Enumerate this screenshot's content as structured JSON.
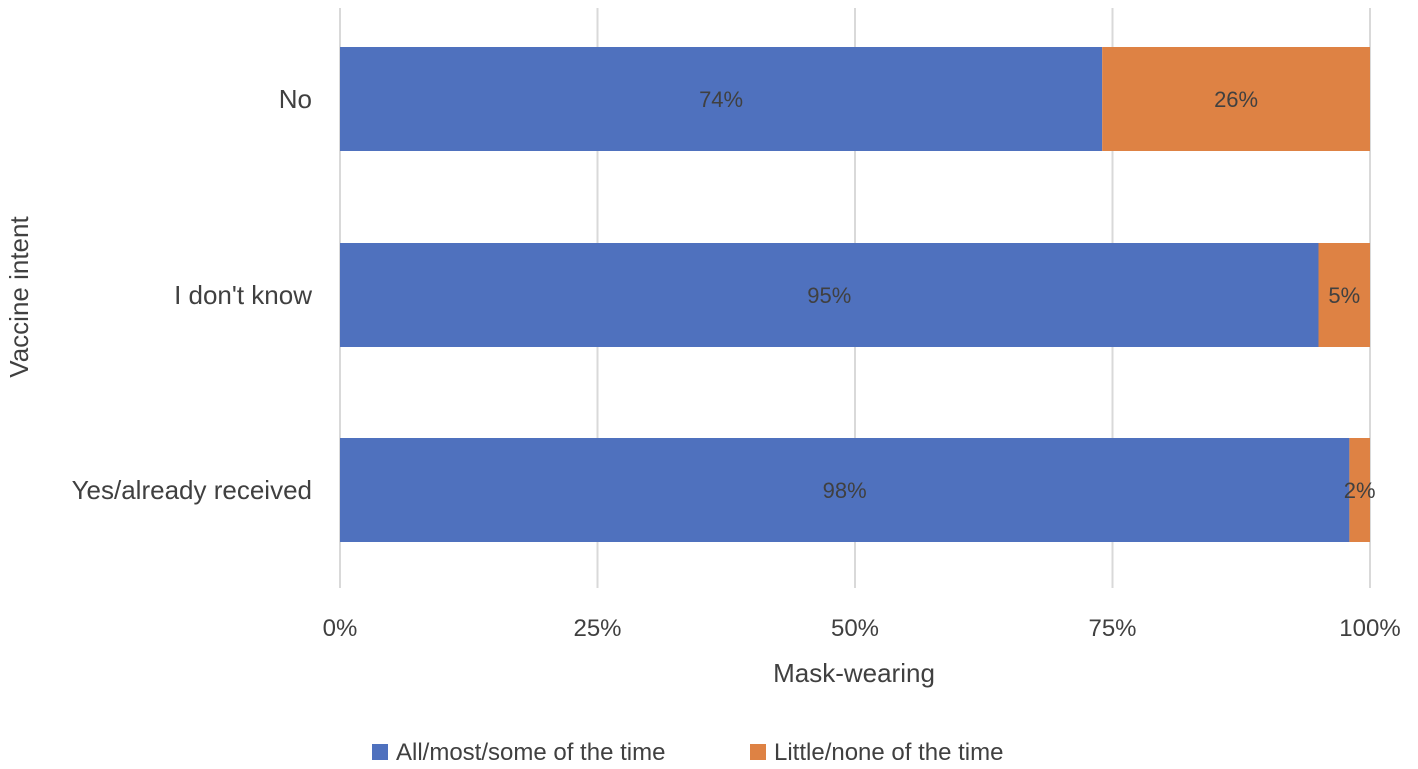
{
  "chart_data": {
    "type": "bar",
    "orientation": "horizontal",
    "stacked": true,
    "percent_stacked": true,
    "categories": [
      "No",
      "I don't know",
      "Yes/already received"
    ],
    "series": [
      {
        "name": "All/most/some of the time",
        "values": [
          74,
          95,
          98
        ],
        "labels": [
          "74%",
          "95%",
          "98%"
        ],
        "color": "#4f71be"
      },
      {
        "name": "Little/none of the time",
        "values": [
          26,
          5,
          2
        ],
        "labels": [
          "26%",
          "5%",
          "2%"
        ],
        "color": "#de8244"
      }
    ],
    "xlabel": "Mask-wearing",
    "ylabel": "Vaccine intent",
    "xlim": [
      0,
      100
    ],
    "xticks": [
      0,
      25,
      50,
      75,
      100
    ],
    "xtick_labels": [
      "0%",
      "25%",
      "50%",
      "75%",
      "100%"
    ],
    "grid": true,
    "legend": "bottom"
  }
}
